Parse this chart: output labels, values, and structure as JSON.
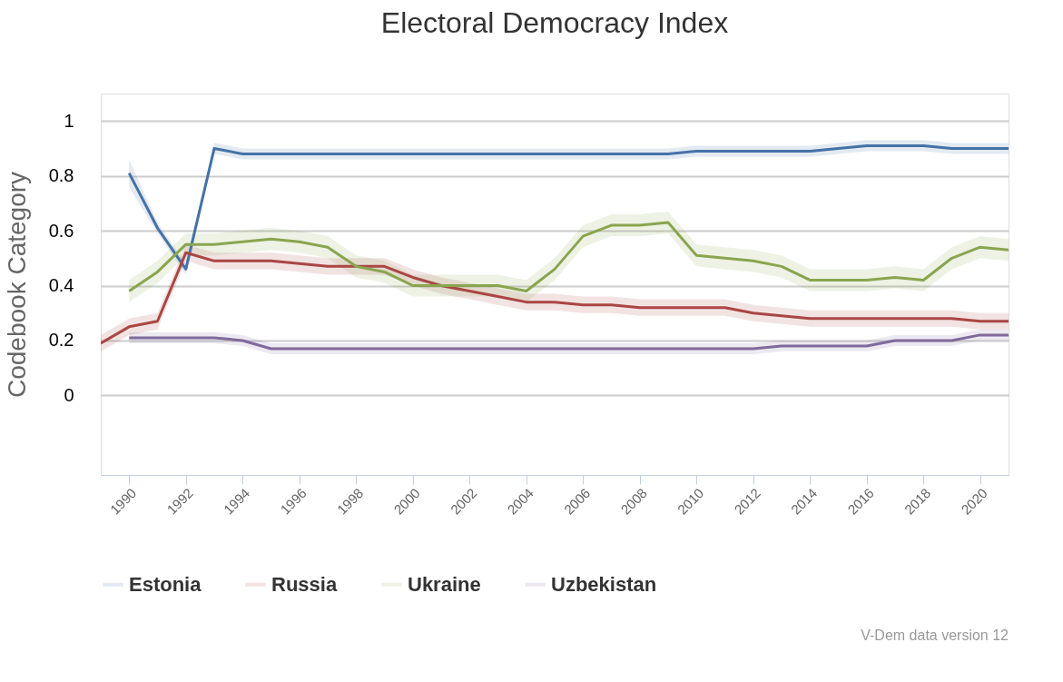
{
  "chart_data": {
    "type": "line",
    "title": "Electoral Democracy Index",
    "ylabel": "Codebook Category",
    "xlim": [
      1989,
      2021
    ],
    "xticks": [
      1990,
      1992,
      1994,
      1996,
      1998,
      2000,
      2002,
      2004,
      2006,
      2008,
      2010,
      2012,
      2014,
      2016,
      2018,
      2020
    ],
    "ylim": [
      -0.29,
      1.1
    ],
    "yticks": [
      0,
      0.2,
      0.4,
      0.6,
      0.8,
      1
    ],
    "grid": "y",
    "legend": "bottom",
    "line_style": "solid",
    "annotations": [
      "V-Dem data version 12"
    ],
    "series": [
      {
        "name": "Estonia",
        "color": "#4572a7",
        "x": [
          1990,
          1991,
          1992,
          1993,
          1994,
          1995,
          1996,
          1997,
          1998,
          1999,
          2000,
          2001,
          2002,
          2003,
          2004,
          2005,
          2006,
          2007,
          2008,
          2009,
          2010,
          2011,
          2012,
          2013,
          2014,
          2015,
          2016,
          2017,
          2018,
          2019,
          2020,
          2021
        ],
        "values": [
          0.81,
          0.61,
          0.46,
          0.9,
          0.88,
          0.88,
          0.88,
          0.88,
          0.88,
          0.88,
          0.88,
          0.88,
          0.88,
          0.88,
          0.88,
          0.88,
          0.88,
          0.88,
          0.88,
          0.88,
          0.89,
          0.89,
          0.89,
          0.89,
          0.89,
          0.9,
          0.91,
          0.91,
          0.91,
          0.9,
          0.9,
          0.9
        ],
        "lower": [
          0.76,
          0.59,
          0.44,
          0.88,
          0.86,
          0.86,
          0.86,
          0.86,
          0.86,
          0.86,
          0.86,
          0.86,
          0.86,
          0.86,
          0.86,
          0.86,
          0.86,
          0.86,
          0.86,
          0.86,
          0.87,
          0.87,
          0.87,
          0.87,
          0.87,
          0.88,
          0.89,
          0.89,
          0.89,
          0.88,
          0.88,
          0.88
        ],
        "upper": [
          0.86,
          0.63,
          0.48,
          0.92,
          0.9,
          0.9,
          0.9,
          0.9,
          0.9,
          0.9,
          0.9,
          0.9,
          0.9,
          0.9,
          0.9,
          0.9,
          0.9,
          0.9,
          0.9,
          0.9,
          0.91,
          0.91,
          0.91,
          0.91,
          0.91,
          0.92,
          0.93,
          0.93,
          0.93,
          0.92,
          0.92,
          0.92
        ]
      },
      {
        "name": "Russia",
        "color": "#aa4643",
        "x": [
          1989,
          1990,
          1991,
          1992,
          1993,
          1994,
          1995,
          1996,
          1997,
          1998,
          1999,
          2000,
          2001,
          2002,
          2003,
          2004,
          2005,
          2006,
          2007,
          2008,
          2009,
          2010,
          2011,
          2012,
          2013,
          2014,
          2015,
          2016,
          2017,
          2018,
          2019,
          2020,
          2021
        ],
        "values": [
          0.19,
          0.25,
          0.27,
          0.52,
          0.49,
          0.49,
          0.49,
          0.48,
          0.47,
          0.47,
          0.47,
          0.43,
          0.4,
          0.38,
          0.36,
          0.34,
          0.34,
          0.33,
          0.33,
          0.32,
          0.32,
          0.32,
          0.32,
          0.3,
          0.29,
          0.28,
          0.28,
          0.28,
          0.28,
          0.28,
          0.28,
          0.27,
          0.27
        ],
        "lower": [
          0.16,
          0.22,
          0.24,
          0.49,
          0.46,
          0.46,
          0.46,
          0.45,
          0.44,
          0.44,
          0.44,
          0.4,
          0.37,
          0.35,
          0.33,
          0.31,
          0.31,
          0.3,
          0.3,
          0.29,
          0.29,
          0.29,
          0.29,
          0.27,
          0.26,
          0.25,
          0.25,
          0.25,
          0.25,
          0.25,
          0.25,
          0.24,
          0.24
        ],
        "upper": [
          0.22,
          0.28,
          0.3,
          0.55,
          0.52,
          0.52,
          0.52,
          0.51,
          0.5,
          0.5,
          0.5,
          0.46,
          0.43,
          0.41,
          0.39,
          0.37,
          0.37,
          0.36,
          0.36,
          0.35,
          0.35,
          0.35,
          0.35,
          0.33,
          0.32,
          0.31,
          0.31,
          0.31,
          0.31,
          0.31,
          0.31,
          0.3,
          0.3
        ]
      },
      {
        "name": "Ukraine",
        "color": "#89a54e",
        "x": [
          1990,
          1991,
          1992,
          1993,
          1994,
          1995,
          1996,
          1997,
          1998,
          1999,
          2000,
          2001,
          2002,
          2003,
          2004,
          2005,
          2006,
          2007,
          2008,
          2009,
          2010,
          2011,
          2012,
          2013,
          2014,
          2015,
          2016,
          2017,
          2018,
          2019,
          2020,
          2021
        ],
        "values": [
          0.38,
          0.45,
          0.55,
          0.55,
          0.56,
          0.57,
          0.56,
          0.54,
          0.47,
          0.45,
          0.4,
          0.4,
          0.4,
          0.4,
          0.38,
          0.46,
          0.58,
          0.62,
          0.62,
          0.63,
          0.51,
          0.5,
          0.49,
          0.47,
          0.42,
          0.42,
          0.42,
          0.43,
          0.42,
          0.5,
          0.54,
          0.53
        ],
        "lower": [
          0.34,
          0.41,
          0.51,
          0.51,
          0.52,
          0.53,
          0.52,
          0.5,
          0.43,
          0.41,
          0.36,
          0.36,
          0.36,
          0.36,
          0.34,
          0.42,
          0.54,
          0.58,
          0.58,
          0.59,
          0.47,
          0.46,
          0.45,
          0.43,
          0.38,
          0.38,
          0.38,
          0.39,
          0.38,
          0.46,
          0.5,
          0.49
        ],
        "upper": [
          0.42,
          0.49,
          0.59,
          0.59,
          0.6,
          0.61,
          0.6,
          0.58,
          0.51,
          0.49,
          0.44,
          0.44,
          0.44,
          0.44,
          0.42,
          0.5,
          0.62,
          0.66,
          0.66,
          0.67,
          0.55,
          0.54,
          0.53,
          0.51,
          0.46,
          0.46,
          0.46,
          0.47,
          0.46,
          0.54,
          0.58,
          0.57
        ]
      },
      {
        "name": "Uzbekistan",
        "color": "#80699b",
        "x": [
          1990,
          1991,
          1992,
          1993,
          1994,
          1995,
          1996,
          1997,
          1998,
          1999,
          2000,
          2001,
          2002,
          2003,
          2004,
          2005,
          2006,
          2007,
          2008,
          2009,
          2010,
          2011,
          2012,
          2013,
          2014,
          2015,
          2016,
          2017,
          2018,
          2019,
          2020,
          2021
        ],
        "values": [
          0.21,
          0.21,
          0.21,
          0.21,
          0.2,
          0.17,
          0.17,
          0.17,
          0.17,
          0.17,
          0.17,
          0.17,
          0.17,
          0.17,
          0.17,
          0.17,
          0.17,
          0.17,
          0.17,
          0.17,
          0.17,
          0.17,
          0.17,
          0.18,
          0.18,
          0.18,
          0.18,
          0.2,
          0.2,
          0.2,
          0.22,
          0.22
        ],
        "lower": [
          0.19,
          0.19,
          0.19,
          0.19,
          0.18,
          0.15,
          0.15,
          0.15,
          0.15,
          0.15,
          0.15,
          0.15,
          0.15,
          0.15,
          0.15,
          0.15,
          0.15,
          0.15,
          0.15,
          0.15,
          0.15,
          0.15,
          0.15,
          0.16,
          0.16,
          0.16,
          0.16,
          0.18,
          0.18,
          0.18,
          0.2,
          0.2
        ],
        "upper": [
          0.23,
          0.23,
          0.23,
          0.23,
          0.22,
          0.19,
          0.19,
          0.19,
          0.19,
          0.19,
          0.19,
          0.19,
          0.19,
          0.19,
          0.19,
          0.19,
          0.19,
          0.19,
          0.19,
          0.19,
          0.19,
          0.19,
          0.19,
          0.2,
          0.2,
          0.2,
          0.2,
          0.22,
          0.22,
          0.22,
          0.24,
          0.24
        ]
      }
    ]
  }
}
